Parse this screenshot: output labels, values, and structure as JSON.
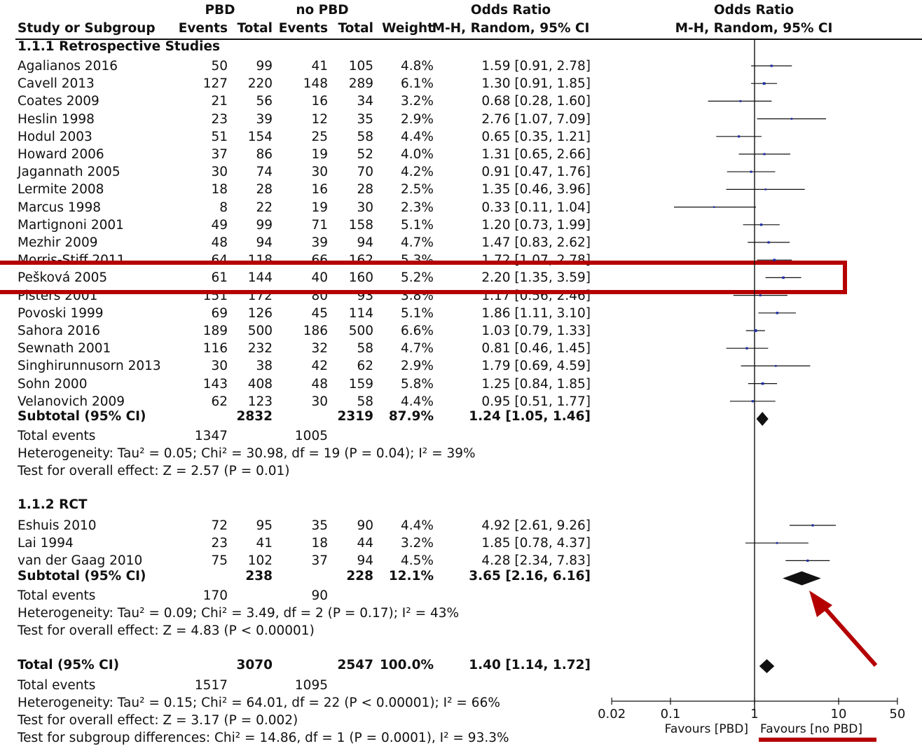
{
  "headers": {
    "group_pbd": "PBD",
    "group_no_pbd": "no PBD",
    "odds_ratio": "Odds Ratio",
    "odds_ratio_plot": "Odds Ratio",
    "study": "Study or Subgroup",
    "events1": "Events",
    "total1": "Total",
    "events2": "Events",
    "total2": "Total",
    "weight": "Weight",
    "method": "M-H, Random, 95% CI",
    "method_plot": "M-H, Random, 95% CI"
  },
  "subgroups": [
    {
      "title": "1.1.1 Retrospective Studies",
      "studies": [
        {
          "name": "Agalianos 2016",
          "e1": "50",
          "t1": "99",
          "e2": "41",
          "t2": "105",
          "w": "4.8%",
          "ci": "1.59 [0.91, 2.78]"
        },
        {
          "name": "Cavell 2013",
          "e1": "127",
          "t1": "220",
          "e2": "148",
          "t2": "289",
          "w": "6.1%",
          "ci": "1.30 [0.91, 1.85]"
        },
        {
          "name": "Coates 2009",
          "e1": "21",
          "t1": "56",
          "e2": "16",
          "t2": "34",
          "w": "3.2%",
          "ci": "0.68 [0.28, 1.60]"
        },
        {
          "name": "Heslin 1998",
          "e1": "23",
          "t1": "39",
          "e2": "12",
          "t2": "35",
          "w": "2.9%",
          "ci": "2.76 [1.07, 7.09]"
        },
        {
          "name": "Hodul 2003",
          "e1": "51",
          "t1": "154",
          "e2": "25",
          "t2": "58",
          "w": "4.4%",
          "ci": "0.65 [0.35, 1.21]"
        },
        {
          "name": "Howard 2006",
          "e1": "37",
          "t1": "86",
          "e2": "19",
          "t2": "52",
          "w": "4.0%",
          "ci": "1.31 [0.65, 2.66]"
        },
        {
          "name": "Jagannath 2005",
          "e1": "30",
          "t1": "74",
          "e2": "30",
          "t2": "70",
          "w": "4.2%",
          "ci": "0.91 [0.47, 1.76]"
        },
        {
          "name": "Lermite 2008",
          "e1": "18",
          "t1": "28",
          "e2": "16",
          "t2": "28",
          "w": "2.5%",
          "ci": "1.35 [0.46, 3.96]"
        },
        {
          "name": "Marcus 1998",
          "e1": "8",
          "t1": "22",
          "e2": "19",
          "t2": "30",
          "w": "2.3%",
          "ci": "0.33 [0.11, 1.04]"
        },
        {
          "name": "Martignoni 2001",
          "e1": "49",
          "t1": "99",
          "e2": "71",
          "t2": "158",
          "w": "5.1%",
          "ci": "1.20 [0.73, 1.99]"
        },
        {
          "name": "Mezhir 2009",
          "e1": "48",
          "t1": "94",
          "e2": "39",
          "t2": "94",
          "w": "4.7%",
          "ci": "1.47 [0.83, 2.62]"
        },
        {
          "name": "Morris-Stiff 2011",
          "e1": "64",
          "t1": "118",
          "e2": "66",
          "t2": "162",
          "w": "5.3%",
          "ci": "1.72 [1.07, 2.78]"
        },
        {
          "name": "Pešková 2005",
          "e1": "61",
          "t1": "144",
          "e2": "40",
          "t2": "160",
          "w": "5.2%",
          "ci": "2.20 [1.35, 3.59]"
        },
        {
          "name": "Pisters 2001",
          "e1": "151",
          "t1": "172",
          "e2": "80",
          "t2": "93",
          "w": "3.8%",
          "ci": "1.17 [0.56, 2.46]"
        },
        {
          "name": "Povoski 1999",
          "e1": "69",
          "t1": "126",
          "e2": "45",
          "t2": "114",
          "w": "5.1%",
          "ci": "1.86 [1.11, 3.10]"
        },
        {
          "name": "Sahora 2016",
          "e1": "189",
          "t1": "500",
          "e2": "186",
          "t2": "500",
          "w": "6.6%",
          "ci": "1.03 [0.79, 1.33]"
        },
        {
          "name": "Sewnath 2001",
          "e1": "116",
          "t1": "232",
          "e2": "32",
          "t2": "58",
          "w": "4.7%",
          "ci": "0.81 [0.46, 1.45]"
        },
        {
          "name": "Singhirunnusorn 2013",
          "e1": "30",
          "t1": "38",
          "e2": "42",
          "t2": "62",
          "w": "2.9%",
          "ci": "1.79 [0.69, 4.59]"
        },
        {
          "name": "Sohn 2000",
          "e1": "143",
          "t1": "408",
          "e2": "48",
          "t2": "159",
          "w": "5.8%",
          "ci": "1.25 [0.84, 1.85]"
        },
        {
          "name": "Velanovich 2009",
          "e1": "62",
          "t1": "123",
          "e2": "30",
          "t2": "58",
          "w": "4.4%",
          "ci": "0.95 [0.51, 1.77]"
        }
      ],
      "subtotal": {
        "label": "Subtotal (95% CI)",
        "t1": "2832",
        "t2": "2319",
        "w": "87.9%",
        "ci": "1.24 [1.05, 1.46]"
      },
      "events": {
        "label": "Total events",
        "e1": "1347",
        "e2": "1005"
      },
      "heterogeneity": "Heterogeneity: Tau² = 0.05; Chi² = 30.98, df = 19 (P = 0.04); I² = 39%",
      "overall": "Test for overall effect: Z = 2.57 (P = 0.01)"
    },
    {
      "title": "1.1.2 RCT",
      "studies": [
        {
          "name": "Eshuis 2010",
          "e1": "72",
          "t1": "95",
          "e2": "35",
          "t2": "90",
          "w": "4.4%",
          "ci": "4.92 [2.61, 9.26]"
        },
        {
          "name": "Lai 1994",
          "e1": "23",
          "t1": "41",
          "e2": "18",
          "t2": "44",
          "w": "3.2%",
          "ci": "1.85 [0.78, 4.37]"
        },
        {
          "name": "van der Gaag 2010",
          "e1": "75",
          "t1": "102",
          "e2": "37",
          "t2": "94",
          "w": "4.5%",
          "ci": "4.28 [2.34, 7.83]"
        }
      ],
      "subtotal": {
        "label": "Subtotal (95% CI)",
        "t1": "238",
        "t2": "228",
        "w": "12.1%",
        "ci": "3.65 [2.16, 6.16]"
      },
      "events": {
        "label": "Total events",
        "e1": "170",
        "e2": "90"
      },
      "heterogeneity": "Heterogeneity: Tau² = 0.09; Chi² = 3.49, df = 2 (P = 0.17); I² = 43%",
      "overall": "Test for overall effect: Z = 4.83 (P < 0.00001)"
    }
  ],
  "total": {
    "label": "Total (95% CI)",
    "t1": "3070",
    "t2": "2547",
    "w": "100.0%",
    "ci": "1.40 [1.14, 1.72]",
    "events_label": "Total events",
    "e1": "1517",
    "e2": "1095",
    "heterogeneity": "Heterogeneity: Tau² = 0.15; Chi² = 64.01, df = 22 (P < 0.00001); I² = 66%",
    "overall": "Test for overall effect: Z = 3.17 (P = 0.002)",
    "subgroup_diff": "Test for subgroup differences: Chi² = 14.86, df = 1 (P = 0.0001), I² = 93.3%"
  },
  "axis": {
    "favours_left": "Favours [PBD]",
    "favours_right": "Favours [no PBD]"
  },
  "colors": {
    "annotation": "#b40000",
    "point": "#1f2fa8",
    "ink": "#111111"
  },
  "chart_data": {
    "type": "forest",
    "scale": "log",
    "xlim": [
      0.02,
      50
    ],
    "ticks": [
      {
        "value": 0.02,
        "label": "0.02"
      },
      {
        "value": 0.1,
        "label": "0.1"
      },
      {
        "value": 1,
        "label": "1"
      },
      {
        "value": 10,
        "label": "10"
      },
      {
        "value": 50,
        "label": "50"
      }
    ],
    "null_line": 1,
    "studies": [
      {
        "name": "Agalianos 2016",
        "or": 1.59,
        "lo": 0.91,
        "hi": 2.78,
        "weight": 4.8
      },
      {
        "name": "Cavell 2013",
        "or": 1.3,
        "lo": 0.91,
        "hi": 1.85,
        "weight": 6.1
      },
      {
        "name": "Coates 2009",
        "or": 0.68,
        "lo": 0.28,
        "hi": 1.6,
        "weight": 3.2
      },
      {
        "name": "Heslin 1998",
        "or": 2.76,
        "lo": 1.07,
        "hi": 7.09,
        "weight": 2.9
      },
      {
        "name": "Hodul 2003",
        "or": 0.65,
        "lo": 0.35,
        "hi": 1.21,
        "weight": 4.4
      },
      {
        "name": "Howard 2006",
        "or": 1.31,
        "lo": 0.65,
        "hi": 2.66,
        "weight": 4.0
      },
      {
        "name": "Jagannath 2005",
        "or": 0.91,
        "lo": 0.47,
        "hi": 1.76,
        "weight": 4.2
      },
      {
        "name": "Lermite 2008",
        "or": 1.35,
        "lo": 0.46,
        "hi": 3.96,
        "weight": 2.5
      },
      {
        "name": "Marcus 1998",
        "or": 0.33,
        "lo": 0.11,
        "hi": 1.04,
        "weight": 2.3
      },
      {
        "name": "Martignoni 2001",
        "or": 1.2,
        "lo": 0.73,
        "hi": 1.99,
        "weight": 5.1
      },
      {
        "name": "Mezhir 2009",
        "or": 1.47,
        "lo": 0.83,
        "hi": 2.62,
        "weight": 4.7
      },
      {
        "name": "Morris-Stiff 2011",
        "or": 1.72,
        "lo": 1.07,
        "hi": 2.78,
        "weight": 5.3
      },
      {
        "name": "Pešková 2005",
        "or": 2.2,
        "lo": 1.35,
        "hi": 3.59,
        "weight": 5.2
      },
      {
        "name": "Pisters 2001",
        "or": 1.17,
        "lo": 0.56,
        "hi": 2.46,
        "weight": 3.8
      },
      {
        "name": "Povoski 1999",
        "or": 1.86,
        "lo": 1.11,
        "hi": 3.1,
        "weight": 5.1
      },
      {
        "name": "Sahora 2016",
        "or": 1.03,
        "lo": 0.79,
        "hi": 1.33,
        "weight": 6.6
      },
      {
        "name": "Sewnath 2001",
        "or": 0.81,
        "lo": 0.46,
        "hi": 1.45,
        "weight": 4.7
      },
      {
        "name": "Singhirunnusorn 2013",
        "or": 1.79,
        "lo": 0.69,
        "hi": 4.59,
        "weight": 2.9
      },
      {
        "name": "Sohn 2000",
        "or": 1.25,
        "lo": 0.84,
        "hi": 1.85,
        "weight": 5.8
      },
      {
        "name": "Velanovich 2009",
        "or": 0.95,
        "lo": 0.51,
        "hi": 1.77,
        "weight": 4.4
      },
      {
        "name": "Eshuis 2010",
        "or": 4.92,
        "lo": 2.61,
        "hi": 9.26,
        "weight": 4.4
      },
      {
        "name": "Lai 1994",
        "or": 1.85,
        "lo": 0.78,
        "hi": 4.37,
        "weight": 3.2
      },
      {
        "name": "van der Gaag 2010",
        "or": 4.28,
        "lo": 2.34,
        "hi": 7.83,
        "weight": 4.5
      }
    ],
    "summaries": [
      {
        "name": "Subtotal 1.1.1 Retrospective Studies",
        "or": 1.24,
        "lo": 1.05,
        "hi": 1.46
      },
      {
        "name": "Subtotal 1.1.2 RCT",
        "or": 3.65,
        "lo": 2.16,
        "hi": 6.16
      },
      {
        "name": "Total",
        "or": 1.4,
        "lo": 1.14,
        "hi": 1.72
      }
    ],
    "highlighted_study": "Pešková 2005"
  }
}
